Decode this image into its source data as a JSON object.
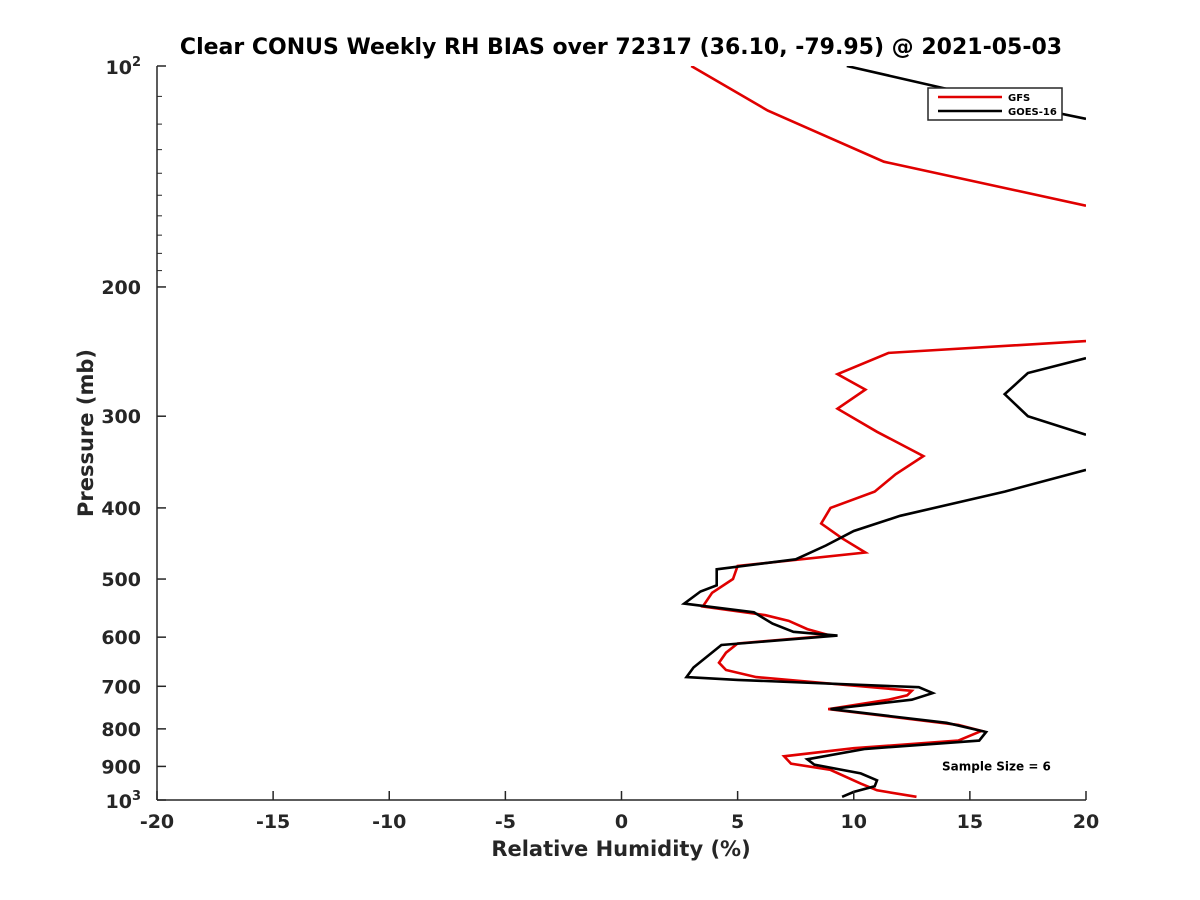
{
  "chart_data": {
    "type": "line",
    "title": "Clear CONUS Weekly RH BIAS over 72317 (36.10, -79.95) @ 2021-05-03",
    "xlabel": "Relative Humidity (%)",
    "ylabel": "Pressure (mb)",
    "xlim": [
      -20,
      20
    ],
    "ylim": [
      100,
      1000
    ],
    "yscale": "log",
    "y_reversed": true,
    "grid": false,
    "legend_position": "top-right",
    "x_ticks": [
      -20,
      -15,
      -10,
      -5,
      0,
      5,
      10,
      15,
      20
    ],
    "x_tick_labels": [
      "-20",
      "-15",
      "-10",
      "-5",
      "0",
      "5",
      "10",
      "15",
      "20"
    ],
    "y_ticks": [
      {
        "value": 100,
        "base": "10",
        "exponent": "2"
      },
      {
        "value": 200,
        "label": "200"
      },
      {
        "value": 300,
        "label": "300"
      },
      {
        "value": 400,
        "label": "400"
      },
      {
        "value": 500,
        "label": "500"
      },
      {
        "value": 600,
        "label": "600"
      },
      {
        "value": 700,
        "label": "700"
      },
      {
        "value": 800,
        "label": "800"
      },
      {
        "value": 900,
        "label": "900"
      },
      {
        "value": 1000,
        "base": "10",
        "exponent": "3"
      }
    ],
    "series": [
      {
        "name": "GFS",
        "color": "#e00000",
        "points": [
          [
            3.0,
            100
          ],
          [
            6.3,
            115
          ],
          [
            11.3,
            135
          ],
          [
            20.0,
            155
          ],
          [
            null,
            null
          ],
          [
            20.0,
            237
          ],
          [
            11.5,
            246
          ],
          [
            9.3,
            263
          ],
          [
            10.5,
            276
          ],
          [
            9.3,
            293
          ],
          [
            11.0,
            315
          ],
          [
            13.0,
            340
          ],
          [
            11.8,
            360
          ],
          [
            10.9,
            380
          ],
          [
            9.0,
            400
          ],
          [
            8.6,
            420
          ],
          [
            9.5,
            440
          ],
          [
            10.5,
            460
          ],
          [
            5.0,
            480
          ],
          [
            4.8,
            500
          ],
          [
            3.9,
            522
          ],
          [
            3.5,
            545
          ],
          [
            6.2,
            560
          ],
          [
            7.2,
            570
          ],
          [
            8.0,
            585
          ],
          [
            9.0,
            597
          ],
          [
            5.0,
            612
          ],
          [
            4.5,
            630
          ],
          [
            4.2,
            650
          ],
          [
            4.5,
            665
          ],
          [
            5.8,
            680
          ],
          [
            12.5,
            710
          ],
          [
            12.3,
            720
          ],
          [
            11.5,
            730
          ],
          [
            8.9,
            752
          ],
          [
            14.5,
            790
          ],
          [
            15.5,
            805
          ],
          [
            14.5,
            830
          ],
          [
            10.0,
            850
          ],
          [
            7.0,
            872
          ],
          [
            7.3,
            892
          ],
          [
            9.0,
            910
          ],
          [
            10.3,
            950
          ],
          [
            11.0,
            970
          ],
          [
            12.7,
            990
          ]
        ]
      },
      {
        "name": "GOES-16",
        "color": "#000000",
        "points": [
          [
            9.7,
            100
          ],
          [
            16.5,
            112
          ],
          [
            20.0,
            118
          ],
          [
            null,
            null
          ],
          [
            20.0,
            250
          ],
          [
            17.5,
            262
          ],
          [
            16.5,
            280
          ],
          [
            17.5,
            300
          ],
          [
            20.0,
            318
          ],
          [
            null,
            null
          ],
          [
            20.0,
            355
          ],
          [
            16.5,
            380
          ],
          [
            12.0,
            410
          ],
          [
            10.0,
            430
          ],
          [
            8.8,
            450
          ],
          [
            7.5,
            470
          ],
          [
            4.1,
            485
          ],
          [
            4.1,
            510
          ],
          [
            3.4,
            520
          ],
          [
            2.7,
            540
          ],
          [
            5.7,
            555
          ],
          [
            6.5,
            575
          ],
          [
            7.4,
            590
          ],
          [
            9.3,
            597
          ],
          [
            4.3,
            615
          ],
          [
            3.1,
            660
          ],
          [
            2.8,
            680
          ],
          [
            5.0,
            686
          ],
          [
            12.8,
            702
          ],
          [
            13.4,
            715
          ],
          [
            12.5,
            730
          ],
          [
            9.0,
            752
          ],
          [
            14.0,
            785
          ],
          [
            15.7,
            808
          ],
          [
            15.4,
            830
          ],
          [
            10.5,
            852
          ],
          [
            8.0,
            880
          ],
          [
            8.3,
            895
          ],
          [
            10.3,
            920
          ],
          [
            11.0,
            940
          ],
          [
            10.9,
            958
          ],
          [
            10.0,
            975
          ],
          [
            9.5,
            990
          ]
        ]
      }
    ],
    "legend": [
      "GFS",
      "GOES-16"
    ],
    "annotations": [
      {
        "text": "Sample Size = 6",
        "x": 13.8,
        "y": 900
      }
    ]
  }
}
